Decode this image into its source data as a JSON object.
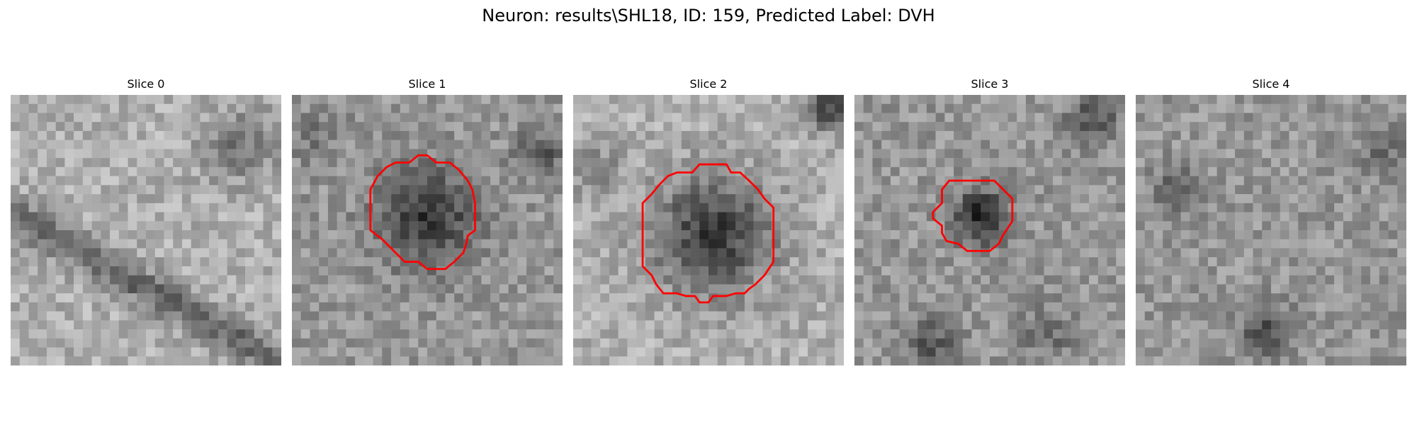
{
  "figure": {
    "title": "Neuron: results\\SHL18, ID: 159, Predicted Label: DVH"
  },
  "panels": [
    {
      "title": "Slice 0",
      "has_outline": false,
      "outline_color": "#ff0000"
    },
    {
      "title": "Slice 1",
      "has_outline": true,
      "outline_color": "#ff0000"
    },
    {
      "title": "Slice 2",
      "has_outline": true,
      "outline_color": "#ff0000"
    },
    {
      "title": "Slice 3",
      "has_outline": true,
      "outline_color": "#ff0000"
    },
    {
      "title": "Slice 4",
      "has_outline": false,
      "outline_color": "#ff0000"
    }
  ],
  "colormap": "gray"
}
